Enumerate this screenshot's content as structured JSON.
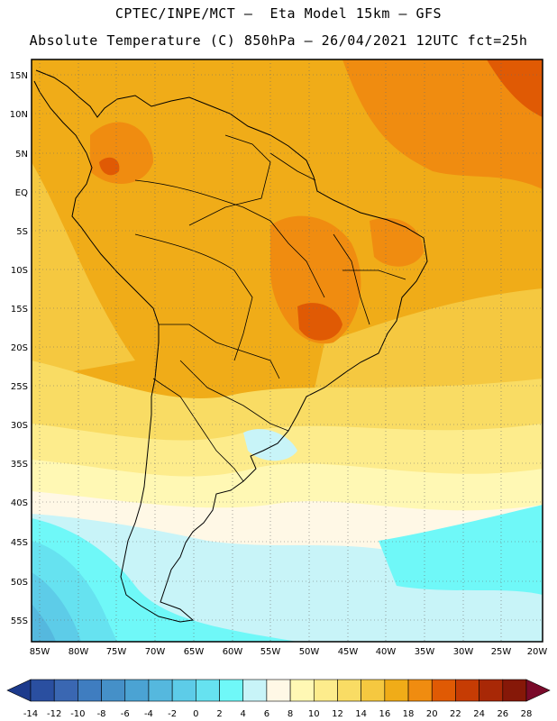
{
  "header": {
    "line1": "CPTEC/INPE/MCT –  Eta Model 15km – GFS",
    "line2": "Absolute Temperature (C) 850hPa – 26/04/2021 12UTC fct=25h"
  },
  "axes": {
    "lat_labels": [
      "15N",
      "10N",
      "5N",
      "EQ",
      "5S",
      "10S",
      "15S",
      "20S",
      "25S",
      "30S",
      "35S",
      "40S",
      "45S",
      "50S",
      "55S"
    ],
    "lon_labels": [
      "85W",
      "80W",
      "75W",
      "70W",
      "65W",
      "60W",
      "55W",
      "50W",
      "45W",
      "40W",
      "35W",
      "30W",
      "25W",
      "20W"
    ]
  },
  "colorbar": {
    "ticks": [
      "-14",
      "-12",
      "-10",
      "-8",
      "-6",
      "-4",
      "-2",
      "0",
      "2",
      "4",
      "6",
      "8",
      "10",
      "12",
      "14",
      "16",
      "18",
      "20",
      "22",
      "24",
      "26",
      "28"
    ],
    "under_color": "#1c3a8c",
    "over_color": "#7a0a2a",
    "colors": [
      "#2a4fa0",
      "#3a67b2",
      "#3f7dc0",
      "#4590c8",
      "#4ba3d3",
      "#55b8de",
      "#5dcce8",
      "#66e2f0",
      "#6ff8f8",
      "#c8f4f8",
      "#fff8e6",
      "#fff8b4",
      "#fdec8c",
      "#f9dc64",
      "#f5c840",
      "#f0ac18",
      "#f08c10",
      "#e05a04",
      "#c63c04",
      "#a82806",
      "#861808"
    ]
  },
  "chart_data": {
    "type": "heatmap",
    "title": "Absolute Temperature (C) 850hPa",
    "model": "Eta Model 15km – GFS",
    "run": "26/04/2021 12UTC",
    "forecast": "fct=25h",
    "lon_range": [
      -85,
      -20
    ],
    "lat_range": [
      -57.5,
      16.5
    ],
    "levels": [
      -14,
      -12,
      -10,
      -8,
      -6,
      -4,
      -2,
      0,
      2,
      4,
      6,
      8,
      10,
      12,
      14,
      16,
      18,
      20,
      22,
      24,
      26,
      28
    ],
    "units": "C"
  }
}
